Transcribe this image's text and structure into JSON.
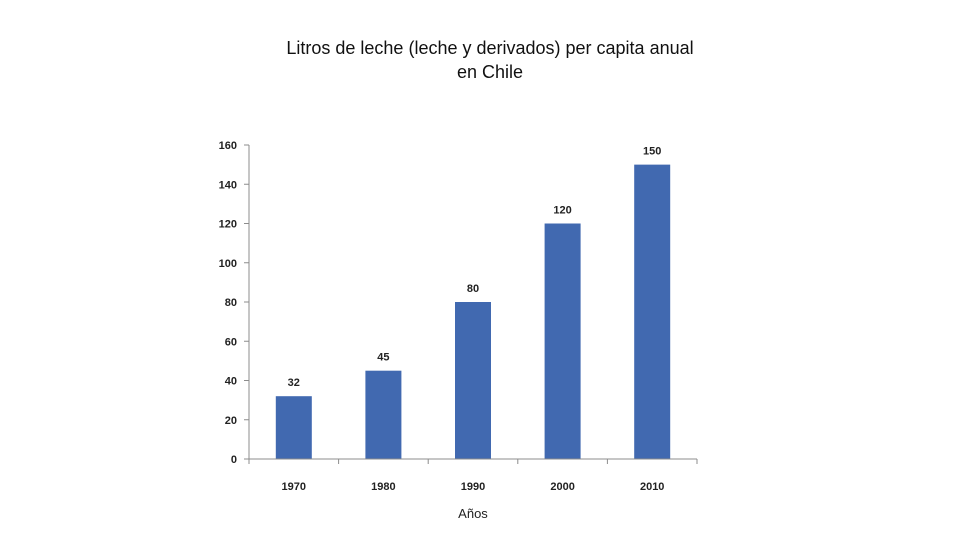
{
  "chart_data": {
    "type": "bar",
    "title_lines": [
      "Litros de leche (leche y derivados) per capita anual",
      "en Chile"
    ],
    "categories": [
      "1970",
      "1980",
      "1990",
      "2000",
      "2010"
    ],
    "values": [
      32,
      45,
      80,
      120,
      150
    ],
    "data_labels": [
      "32",
      "45",
      "80",
      "120",
      "150"
    ],
    "xlabel": "Años",
    "ylabel": "",
    "ylim": [
      0,
      160
    ],
    "y_ticks": [
      0,
      20,
      40,
      60,
      80,
      100,
      120,
      140,
      160
    ],
    "grid": false,
    "legend": "none",
    "bar_color": "#4169B0"
  }
}
